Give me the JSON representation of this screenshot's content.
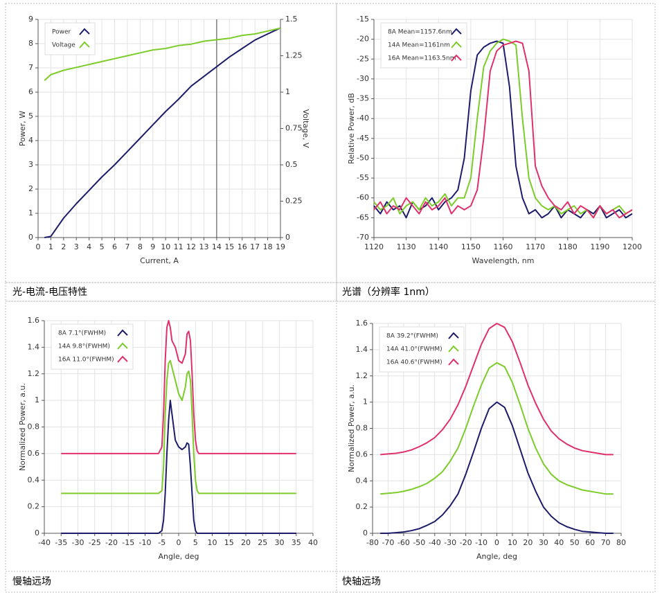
{
  "chart_data": [
    {
      "type": "line",
      "caption": "光-电流-电压特性",
      "xlabel": "Current, A",
      "ylabel": "Power, W",
      "y2label": "Voltage, V",
      "x": [
        0.5,
        1,
        2,
        3,
        4,
        5,
        6,
        7,
        8,
        9,
        10,
        11,
        12,
        13,
        14,
        15,
        16,
        17,
        18,
        19
      ],
      "series": [
        {
          "name": "Power",
          "color": "#1c1c6b",
          "values": [
            0,
            0.05,
            0.8,
            1.4,
            1.95,
            2.5,
            3.0,
            3.55,
            4.1,
            4.65,
            5.2,
            5.7,
            6.25,
            6.65,
            7.05,
            7.45,
            7.8,
            8.15,
            8.4,
            8.65
          ]
        },
        {
          "name": "Voltage",
          "color": "#7ccc29",
          "axis": "y2",
          "values": [
            1.08,
            1.12,
            1.15,
            1.17,
            1.19,
            1.21,
            1.23,
            1.25,
            1.27,
            1.29,
            1.3,
            1.32,
            1.33,
            1.35,
            1.36,
            1.37,
            1.39,
            1.4,
            1.42,
            1.44
          ]
        }
      ],
      "cursor_x": 14,
      "xlim": [
        0,
        19
      ],
      "xticks": [
        0,
        1,
        2,
        3,
        4,
        5,
        6,
        7,
        8,
        9,
        10,
        11,
        12,
        13,
        14,
        15,
        16,
        17,
        18,
        19
      ],
      "ylim": [
        0,
        9
      ],
      "yticks": [
        0,
        1,
        2,
        3,
        4,
        5,
        6,
        7,
        8,
        9
      ],
      "y2lim": [
        0,
        1.5
      ],
      "y2ticks": [
        0,
        0.25,
        0.5,
        0.75,
        1,
        1.25,
        1.5
      ],
      "grid": true,
      "legend": "upper left"
    },
    {
      "type": "line",
      "caption": "光谱（分辨率 1nm）",
      "xlabel": "Wavelength, nm",
      "ylabel": "Relative Power, dB",
      "x": [
        1120,
        1122,
        1124,
        1126,
        1128,
        1130,
        1132,
        1134,
        1136,
        1138,
        1140,
        1142,
        1144,
        1146,
        1148,
        1150,
        1152,
        1154,
        1156,
        1158,
        1160,
        1162,
        1164,
        1166,
        1168,
        1170,
        1172,
        1174,
        1176,
        1178,
        1180,
        1182,
        1184,
        1186,
        1188,
        1190,
        1192,
        1194,
        1196,
        1198,
        1200
      ],
      "series": [
        {
          "name": "8A Mean=1157.6nm",
          "color": "#1c1c6b",
          "values": [
            -62,
            -64,
            -61,
            -63,
            -62,
            -65,
            -61,
            -63,
            -62,
            -60,
            -63,
            -61,
            -60,
            -58,
            -50,
            -33,
            -24,
            -22,
            -21,
            -20.5,
            -21,
            -32,
            -52,
            -60,
            -64,
            -63,
            -65,
            -64,
            -62,
            -65,
            -63,
            -64,
            -65,
            -63,
            -64,
            -62,
            -65,
            -64,
            -63,
            -65,
            -64
          ]
        },
        {
          "name": "14A Mean=1161nm",
          "color": "#7ccc29",
          "values": [
            -61,
            -63,
            -62,
            -60,
            -64,
            -62,
            -61,
            -63,
            -60,
            -62,
            -61,
            -59,
            -62,
            -60,
            -60,
            -55,
            -40,
            -27,
            -23,
            -21,
            -20,
            -20.5,
            -21.5,
            -40,
            -55,
            -60,
            -62,
            -63,
            -62,
            -64,
            -63,
            -62,
            -64,
            -63,
            -65,
            -62,
            -64,
            -63,
            -62,
            -64,
            -63
          ]
        },
        {
          "name": "16A Mean=1163.5nm",
          "color": "#e0306a",
          "values": [
            -63,
            -61,
            -64,
            -62,
            -63,
            -60,
            -62,
            -64,
            -61,
            -63,
            -62,
            -60,
            -64,
            -62,
            -63,
            -62,
            -58,
            -45,
            -28,
            -23,
            -21.5,
            -21,
            -20.5,
            -21,
            -28,
            -52,
            -57,
            -60,
            -62,
            -63,
            -61,
            -64,
            -62,
            -63,
            -65,
            -62,
            -64,
            -63,
            -65,
            -64,
            -63
          ]
        }
      ],
      "xlim": [
        1120,
        1200
      ],
      "xticks": [
        1120,
        1130,
        1140,
        1150,
        1160,
        1170,
        1180,
        1190,
        1200
      ],
      "ylim": [
        -70,
        -15
      ],
      "yticks": [
        -70,
        -65,
        -60,
        -55,
        -50,
        -45,
        -40,
        -35,
        -30,
        -25,
        -20,
        -15
      ],
      "grid": true,
      "legend": "upper left"
    },
    {
      "type": "line",
      "caption": "慢轴远场",
      "xlabel": "Angle, deg",
      "ylabel": "Normalized Power, a.u.",
      "x": [
        -35,
        -10,
        -6,
        -5,
        -4.5,
        -4,
        -3.5,
        -3,
        -2.5,
        -2,
        -1,
        0,
        1,
        2,
        2.5,
        3,
        3.5,
        4,
        4.5,
        5,
        5.5,
        6,
        10,
        35
      ],
      "series": [
        {
          "name": "8A 7.1°(FWHM)",
          "color": "#1c1c6b",
          "values": [
            0,
            0,
            0,
            0.02,
            0.1,
            0.3,
            0.6,
            0.85,
            1.0,
            0.9,
            0.7,
            0.65,
            0.63,
            0.65,
            0.68,
            0.67,
            0.5,
            0.3,
            0.1,
            0.02,
            0,
            0,
            0,
            0
          ]
        },
        {
          "name": "14A 9.8°(FWHM)",
          "color": "#7ccc29",
          "values": [
            0.3,
            0.3,
            0.3,
            0.32,
            0.5,
            0.9,
            1.15,
            1.28,
            1.3,
            1.25,
            1.15,
            1.05,
            1.0,
            1.1,
            1.2,
            1.22,
            1.15,
            0.9,
            0.6,
            0.4,
            0.32,
            0.3,
            0.3,
            0.3
          ]
        },
        {
          "name": "16A 11.0°(FWHM)",
          "color": "#e0306a",
          "values": [
            0.6,
            0.6,
            0.6,
            0.65,
            0.9,
            1.3,
            1.55,
            1.6,
            1.55,
            1.45,
            1.4,
            1.3,
            1.28,
            1.35,
            1.5,
            1.52,
            1.45,
            1.2,
            0.9,
            0.7,
            0.62,
            0.6,
            0.6,
            0.6
          ]
        }
      ],
      "xlim": [
        -40,
        40
      ],
      "xticks": [
        -40,
        -35,
        -30,
        -25,
        -20,
        -15,
        -10,
        -5,
        0,
        5,
        10,
        15,
        20,
        25,
        30,
        35,
        40
      ],
      "ylim": [
        0,
        1.6
      ],
      "yticks": [
        0,
        0.2,
        0.4,
        0.6,
        0.8,
        1,
        1.2,
        1.4,
        1.6
      ],
      "grid": true,
      "legend": "upper left"
    },
    {
      "type": "line",
      "caption": "快轴远场",
      "xlabel": "Angle, deg",
      "ylabel": "Normalized Power, a.u.",
      "x": [
        -75,
        -70,
        -65,
        -60,
        -55,
        -50,
        -45,
        -40,
        -35,
        -30,
        -25,
        -20,
        -15,
        -10,
        -5,
        0,
        5,
        10,
        15,
        20,
        25,
        30,
        35,
        40,
        45,
        50,
        55,
        60,
        65,
        70,
        75
      ],
      "series": [
        {
          "name": "8A 39.2°(FWHM)",
          "color": "#1c1c6b",
          "values": [
            0,
            0,
            0.005,
            0.01,
            0.02,
            0.035,
            0.06,
            0.09,
            0.14,
            0.21,
            0.3,
            0.45,
            0.62,
            0.8,
            0.95,
            1.0,
            0.96,
            0.82,
            0.64,
            0.46,
            0.32,
            0.2,
            0.13,
            0.08,
            0.05,
            0.03,
            0.015,
            0.01,
            0.005,
            0,
            0
          ]
        },
        {
          "name": "14A 41.0°(FWHM)",
          "color": "#7ccc29",
          "values": [
            0.3,
            0.305,
            0.31,
            0.32,
            0.335,
            0.355,
            0.38,
            0.42,
            0.47,
            0.55,
            0.65,
            0.8,
            0.97,
            1.13,
            1.26,
            1.3,
            1.27,
            1.15,
            0.98,
            0.8,
            0.65,
            0.53,
            0.45,
            0.4,
            0.37,
            0.35,
            0.33,
            0.32,
            0.31,
            0.3,
            0.3
          ]
        },
        {
          "name": "16A 40.6°(FWHM)",
          "color": "#e0306a",
          "values": [
            0.6,
            0.605,
            0.61,
            0.62,
            0.635,
            0.66,
            0.69,
            0.73,
            0.79,
            0.87,
            0.98,
            1.12,
            1.28,
            1.44,
            1.56,
            1.6,
            1.57,
            1.46,
            1.3,
            1.13,
            0.99,
            0.87,
            0.78,
            0.72,
            0.68,
            0.65,
            0.63,
            0.62,
            0.61,
            0.6,
            0.6
          ]
        }
      ],
      "xlim": [
        -80,
        80
      ],
      "xticks": [
        -80,
        -70,
        -60,
        -50,
        -40,
        -30,
        -20,
        -10,
        0,
        10,
        20,
        30,
        40,
        50,
        60,
        70,
        80
      ],
      "ylim": [
        0,
        1.6
      ],
      "yticks": [
        0,
        0.2,
        0.4,
        0.6,
        0.8,
        1,
        1.2,
        1.4,
        1.6
      ],
      "grid": true,
      "legend": "upper left"
    }
  ]
}
